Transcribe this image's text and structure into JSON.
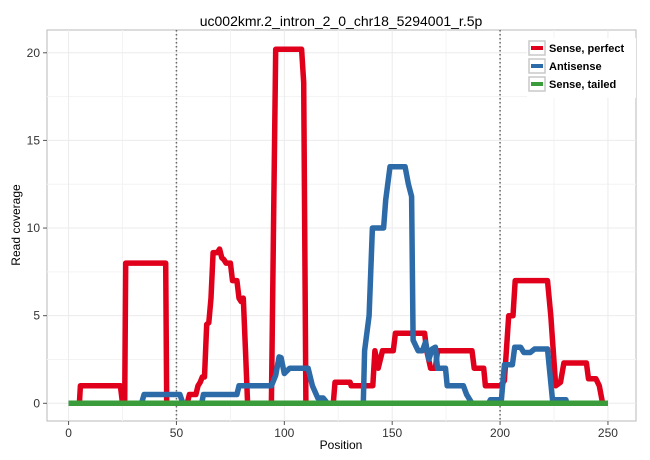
{
  "chart_data": {
    "type": "line",
    "title": "uc002kmr.2_intron_2_0_chr18_5294001_r.5p",
    "xlabel": "Position",
    "ylabel": "Read coverage",
    "xlim": [
      -10,
      263
    ],
    "ylim": [
      -1.01,
      21.3
    ],
    "xticks": [
      0,
      50,
      100,
      150,
      200,
      250
    ],
    "yticks": [
      0,
      5,
      10,
      15,
      20
    ],
    "grid": true,
    "vlines": [
      50,
      200
    ],
    "legend_position": "top-right",
    "series": [
      {
        "name": "Sense, perfect",
        "color": "#e0001b",
        "points": [
          [
            0,
            0
          ],
          [
            5,
            0
          ],
          [
            5.5,
            1
          ],
          [
            24,
            1
          ],
          [
            25,
            0
          ],
          [
            26,
            0
          ],
          [
            26.5,
            8
          ],
          [
            45,
            8
          ],
          [
            45.5,
            0
          ],
          [
            55,
            0
          ],
          [
            56,
            0.5
          ],
          [
            59,
            0.5
          ],
          [
            60,
            1
          ],
          [
            61,
            1.2
          ],
          [
            62,
            1.5
          ],
          [
            63,
            1.5
          ],
          [
            64,
            4.5
          ],
          [
            65,
            4.6
          ],
          [
            66,
            6
          ],
          [
            67,
            8.6
          ],
          [
            69,
            8.6
          ],
          [
            70,
            8.8
          ],
          [
            71,
            8.3
          ],
          [
            72,
            8.2
          ],
          [
            73,
            8
          ],
          [
            75,
            8
          ],
          [
            76,
            7
          ],
          [
            78,
            7
          ],
          [
            79,
            6
          ],
          [
            80,
            5.8
          ],
          [
            81,
            6
          ],
          [
            82,
            3
          ],
          [
            83,
            0
          ],
          [
            94,
            0
          ],
          [
            95,
            10
          ],
          [
            96,
            20.2
          ],
          [
            108,
            20.2
          ],
          [
            109,
            18.3
          ],
          [
            110,
            0
          ],
          [
            122.7,
            0
          ],
          [
            123.5,
            1.2
          ],
          [
            130.5,
            1.2
          ],
          [
            131,
            1
          ],
          [
            141,
            1
          ],
          [
            142,
            3
          ],
          [
            143.5,
            2
          ],
          [
            145.5,
            3
          ],
          [
            150.5,
            3
          ],
          [
            151.5,
            4
          ],
          [
            165,
            4
          ],
          [
            166,
            3
          ],
          [
            167.8,
            2
          ],
          [
            170,
            2
          ],
          [
            171,
            3
          ],
          [
            187,
            3
          ],
          [
            188,
            2
          ],
          [
            192.4,
            2
          ],
          [
            193.2,
            1
          ],
          [
            200.3,
            1
          ],
          [
            202,
            1.3
          ],
          [
            204,
            5
          ],
          [
            206,
            5
          ],
          [
            207,
            7
          ],
          [
            222,
            7
          ],
          [
            223.5,
            5
          ],
          [
            225.8,
            1
          ],
          [
            228,
            1.2
          ],
          [
            229.6,
            2.3
          ],
          [
            240,
            2.3
          ],
          [
            241,
            1.4
          ],
          [
            244.4,
            1.4
          ],
          [
            246,
            1
          ],
          [
            247.5,
            0
          ],
          [
            250,
            0
          ]
        ]
      },
      {
        "name": "Antisense",
        "color": "#2c6aa8",
        "points": [
          [
            0,
            0
          ],
          [
            33.8,
            0
          ],
          [
            35,
            0.5
          ],
          [
            51.6,
            0.5
          ],
          [
            53,
            0
          ],
          [
            61.7,
            0
          ],
          [
            62.5,
            0.5
          ],
          [
            78,
            0.5
          ],
          [
            79,
            1
          ],
          [
            94,
            1
          ],
          [
            96,
            1.6
          ],
          [
            97.6,
            2.65
          ],
          [
            98.5,
            2.6
          ],
          [
            100,
            1.7
          ],
          [
            102.5,
            2
          ],
          [
            111,
            2
          ],
          [
            113,
            1
          ],
          [
            115.5,
            0.3
          ],
          [
            118,
            0.3
          ],
          [
            120,
            0
          ],
          [
            136.6,
            0
          ],
          [
            137.2,
            3
          ],
          [
            139.3,
            5
          ],
          [
            140.8,
            10
          ],
          [
            146,
            10
          ],
          [
            147,
            11.6
          ],
          [
            149,
            13.5
          ],
          [
            156,
            13.5
          ],
          [
            157.5,
            12.5
          ],
          [
            159,
            11.8
          ],
          [
            159.7,
            3.6
          ],
          [
            162,
            3
          ],
          [
            164,
            3
          ],
          [
            165.5,
            3.5
          ],
          [
            167,
            2.5
          ],
          [
            168.5,
            3.1
          ],
          [
            170,
            3.2
          ],
          [
            171,
            2
          ],
          [
            174.7,
            2
          ],
          [
            175.5,
            1
          ],
          [
            183,
            1
          ],
          [
            184.5,
            0.5
          ],
          [
            187,
            0
          ],
          [
            194.7,
            0
          ],
          [
            195.5,
            0.2
          ],
          [
            200.6,
            0.2
          ],
          [
            202,
            2.2
          ],
          [
            205.7,
            2.2
          ],
          [
            206.8,
            3.2
          ],
          [
            209.5,
            3.2
          ],
          [
            211,
            2.9
          ],
          [
            214,
            2.9
          ],
          [
            216,
            3.1
          ],
          [
            222,
            3.1
          ],
          [
            224.3,
            0.2
          ],
          [
            230.5,
            0.2
          ],
          [
            231,
            0
          ],
          [
            250,
            0
          ]
        ]
      },
      {
        "name": "Sense, tailed",
        "color": "#3a9c3a",
        "points": [
          [
            0,
            0
          ],
          [
            250,
            0
          ]
        ]
      }
    ]
  }
}
